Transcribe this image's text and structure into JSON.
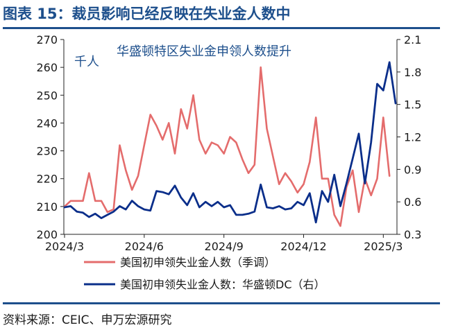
{
  "title": "图表 15：裁员影响已经反映在失业金人数中",
  "source": "资料来源：CEIC、申万宏源研究",
  "colors": {
    "accent": "#1d4f8c",
    "left_series": "#e46c6c",
    "right_series": "#0a2e8a"
  },
  "chart_data": {
    "type": "line",
    "unit_label": "千人",
    "annotation": "华盛顿特区失业金申领人数提升",
    "x_ticks": [
      "2024/3",
      "2024/6",
      "2024/9",
      "2024/12",
      "2025/3"
    ],
    "x_tick_index": [
      0,
      13,
      26,
      39,
      52
    ],
    "y_left": {
      "ylim": [
        200,
        270
      ],
      "ticks": [
        200,
        210,
        220,
        230,
        240,
        250,
        260,
        270
      ]
    },
    "y_right": {
      "ylim": [
        0.3,
        2.1
      ],
      "ticks": [
        "0.3",
        "0.6",
        "0.9",
        "1.2",
        "1.5",
        "1.8",
        "2.1"
      ]
    },
    "series": [
      {
        "name": "美国初申领失业金人数（季调）",
        "axis": "left",
        "values": [
          210,
          212,
          212,
          212,
          222,
          212,
          212,
          208,
          209,
          232,
          223,
          216,
          221,
          232,
          243,
          239,
          234,
          240,
          229,
          245,
          238,
          250,
          234,
          229,
          233,
          232,
          229,
          235,
          233,
          227,
          222,
          225,
          260,
          238,
          228,
          218,
          222,
          219,
          215,
          218,
          226,
          242,
          220,
          220,
          207,
          203,
          217,
          223,
          208,
          220,
          214,
          220,
          242,
          221
        ]
      },
      {
        "name": "美国初申领失业金人数：华盛顿DC（右）",
        "axis": "right",
        "values": [
          0.55,
          0.56,
          0.51,
          0.5,
          0.46,
          0.49,
          0.45,
          0.48,
          0.51,
          0.56,
          0.53,
          0.61,
          0.56,
          0.53,
          0.52,
          0.7,
          0.69,
          0.67,
          0.75,
          0.64,
          0.57,
          0.68,
          0.55,
          0.6,
          0.56,
          0.6,
          0.55,
          0.57,
          0.48,
          0.48,
          0.49,
          0.51,
          0.76,
          0.55,
          0.54,
          0.56,
          0.53,
          0.54,
          0.6,
          0.57,
          0.68,
          0.41,
          0.7,
          0.6,
          0.85,
          0.56,
          0.77,
          1.0,
          1.23,
          0.77,
          1.15,
          1.69,
          1.63,
          1.89,
          1.51
        ]
      }
    ]
  }
}
